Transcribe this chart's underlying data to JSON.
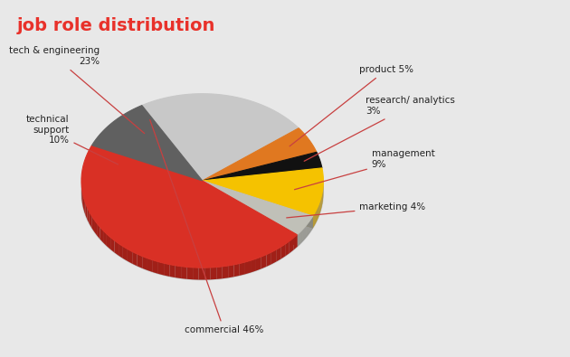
{
  "title": "job role distribution",
  "title_color": "#e8312a",
  "bg_top": "#f5f5f5",
  "bg_bottom": "#e8e8e8",
  "background_color": "#e8e8e8",
  "slices": [
    {
      "label": "commercial 46%",
      "value": 46,
      "color": "#d93025",
      "dark": "#a02018"
    },
    {
      "label": "tech & engineering\n23%",
      "value": 23,
      "color": "#c8c8c8",
      "dark": "#909090"
    },
    {
      "label": "technical\nsupport\n10%",
      "value": 10,
      "color": "#656565",
      "dark": "#404040"
    },
    {
      "label": "product 5%",
      "value": 5,
      "color": "#e07820",
      "dark": "#a05010"
    },
    {
      "label": "research/ analytics\n3%",
      "value": 3,
      "color": "#111111",
      "dark": "#080808"
    },
    {
      "label": "management\n9%",
      "value": 9,
      "color": "#f5c200",
      "dark": "#b08800"
    },
    {
      "label": "marketing 4%",
      "value": 4,
      "color": "#c8c8c0",
      "dark": "#909088"
    }
  ],
  "label_color": "#222222",
  "line_color": "#c84040",
  "label_texts": [
    "commercial 46%",
    "tech & engineering\n23%",
    "technical\nsupport\n10%",
    "product 5%",
    "research/ analytics\n3%",
    "management\n9%",
    "marketing 4%"
  ],
  "figsize": [
    6.3,
    3.95
  ],
  "dpi": 100
}
